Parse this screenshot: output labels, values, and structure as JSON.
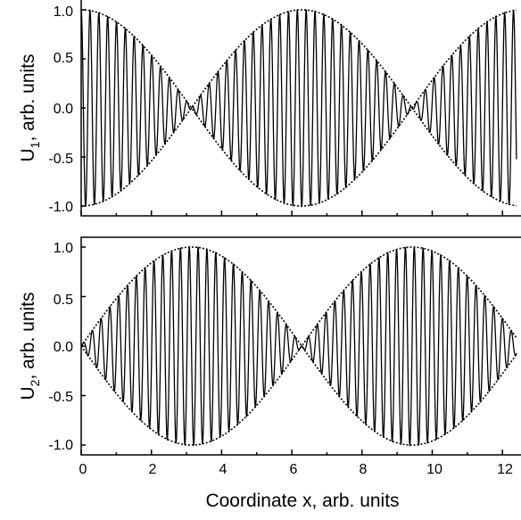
{
  "chart_data": [
    {
      "type": "line",
      "ylabel": "U",
      "ylabel_sub": "1",
      "ylabel_rest": ", arb. units",
      "xlim": [
        0,
        12.4
      ],
      "ylim": [
        -1.08,
        1.08
      ],
      "y_ticks": [
        1.0,
        0.5,
        0.0,
        -0.5,
        -1.0
      ],
      "y_tick_labels": [
        "1.0",
        "0.5",
        "0.0",
        "-0.5",
        "-1.0"
      ],
      "x_ticks": [
        0,
        2,
        4,
        6,
        8,
        10,
        12
      ],
      "x_tick_labels": [],
      "series": [
        {
          "style": "solid",
          "expression": "cos(x/2) * cos(25x)",
          "carrier_frequency": 25,
          "envelope_frequency": 0.5
        },
        {
          "style": "dotted",
          "expression": "±|cos(x/2)|"
        }
      ],
      "grid": false
    },
    {
      "type": "line",
      "ylabel": "U",
      "ylabel_sub": "2",
      "ylabel_rest": ", arb. units",
      "xlabel": "Coordinate x, arb. units",
      "xlim": [
        0,
        12.4
      ],
      "ylim": [
        -1.08,
        1.08
      ],
      "y_ticks": [
        1.0,
        0.5,
        0.0,
        -0.5,
        -1.0
      ],
      "y_tick_labels": [
        "1.0",
        "0.5",
        "0.0",
        "-0.5",
        "-1.0"
      ],
      "x_ticks": [
        0,
        2,
        4,
        6,
        8,
        10,
        12
      ],
      "x_tick_labels": [
        "0",
        "2",
        "4",
        "6",
        "8",
        "10",
        "12"
      ],
      "series": [
        {
          "style": "solid",
          "expression": "sin(x/2) * sin(25x)",
          "carrier_frequency": 25,
          "envelope_frequency": 0.5
        },
        {
          "style": "dotted",
          "expression": "±|sin(x/2)|"
        }
      ],
      "grid": false
    }
  ]
}
